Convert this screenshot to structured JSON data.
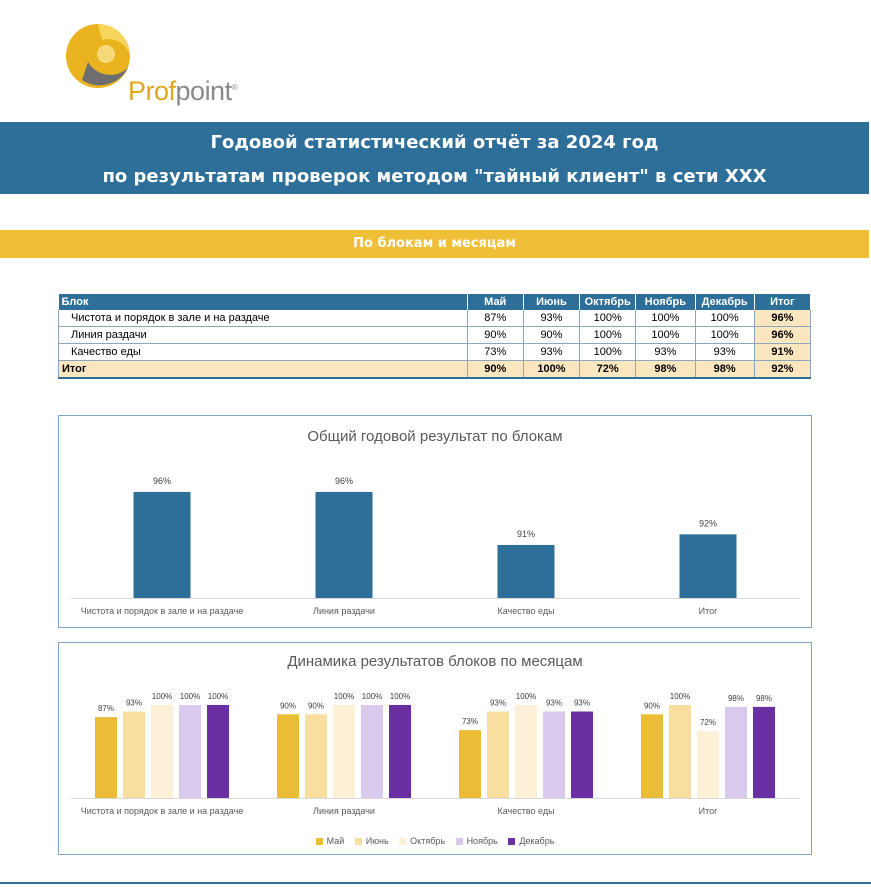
{
  "logo": {
    "text_a": "Prof",
    "text_b": "point",
    "reg": "®"
  },
  "title": {
    "line1": "Годовой статистический отчёт за 2024 год",
    "line2": "по результатам проверок методом \"тайный клиент\" в сети ХХХ"
  },
  "subtitle": "По блокам и месяцам",
  "table": {
    "headers": [
      "Блок",
      "Май",
      "Июнь",
      "Октябрь",
      "Ноябрь",
      "Декабрь",
      "Итог"
    ],
    "rows": [
      {
        "block": "Чистота и порядок в зале и на раздаче",
        "values": [
          "87%",
          "93%",
          "100%",
          "100%",
          "100%"
        ],
        "total": "96%"
      },
      {
        "block": "Линия раздачи",
        "values": [
          "90%",
          "90%",
          "100%",
          "100%",
          "100%"
        ],
        "total": "96%"
      },
      {
        "block": "Качество еды",
        "values": [
          "73%",
          "93%",
          "100%",
          "93%",
          "93%"
        ],
        "total": "91%"
      }
    ],
    "total_row": {
      "block": "Итог",
      "values": [
        "90%",
        "100%",
        "72%",
        "98%",
        "98%"
      ],
      "total": "92%"
    }
  },
  "colors": {
    "blue": "#2e6f9a",
    "gold": "#efbf38",
    "may": "#ebbd36",
    "june": "#f8df9f",
    "october": "#fcf1d6",
    "november": "#d9c9ec",
    "december": "#6a2fa2"
  },
  "chart_data": [
    {
      "type": "bar",
      "title": "Общий годовой результат по блокам",
      "categories": [
        "Чистота и порядок в зале и на раздаче",
        "Линия раздачи",
        "Качество еды",
        "Итог"
      ],
      "values": [
        96,
        96,
        91,
        92
      ],
      "labels": [
        "96%",
        "96%",
        "91%",
        "92%"
      ],
      "ylim": [
        86,
        97.5
      ],
      "grid": false,
      "legend": "none"
    },
    {
      "type": "bar",
      "title": "Динамика результатов блоков по месяцам",
      "categories": [
        "Чистота и порядок в зале и на раздаче",
        "Линия раздачи",
        "Качество еды",
        "Итог"
      ],
      "series": [
        {
          "name": "Май",
          "values": [
            87,
            90,
            73,
            90
          ],
          "labels": [
            "87%",
            "90%",
            "73%",
            "90%"
          ]
        },
        {
          "name": "Июнь",
          "values": [
            93,
            90,
            93,
            100
          ],
          "labels": [
            "93%",
            "90%",
            "93%",
            "100%"
          ]
        },
        {
          "name": "Октябрь",
          "values": [
            100,
            100,
            100,
            72
          ],
          "labels": [
            "100%",
            "100%",
            "100%",
            "72%"
          ]
        },
        {
          "name": "Ноябрь",
          "values": [
            100,
            100,
            93,
            98
          ],
          "labels": [
            "100%",
            "100%",
            "93%",
            "98%"
          ]
        },
        {
          "name": "Декабрь",
          "values": [
            100,
            100,
            93,
            98
          ],
          "labels": [
            "100%",
            "100%",
            "93%",
            "98%"
          ]
        }
      ],
      "ylim": [
        0,
        100
      ],
      "grid": false,
      "legend": "bottom"
    }
  ]
}
